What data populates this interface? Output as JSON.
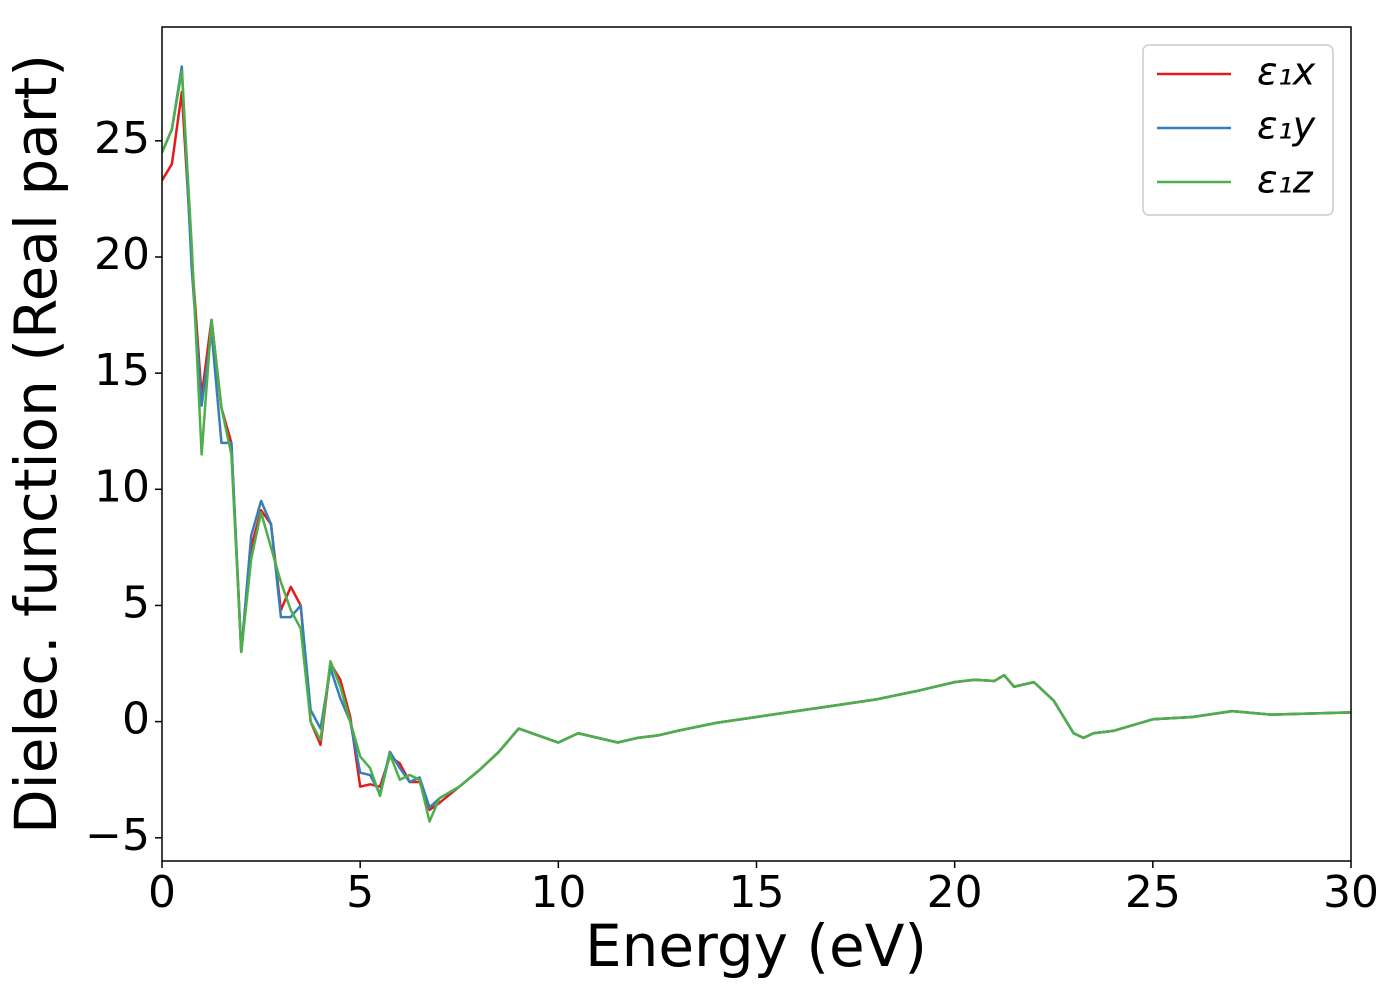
{
  "chart_data": {
    "type": "line",
    "xlabel": "Energy (eV)",
    "ylabel": "Dielec. function (Real part)",
    "x": [
      0,
      0.25,
      0.5,
      0.75,
      1.0,
      1.25,
      1.5,
      1.75,
      2.0,
      2.25,
      2.5,
      2.75,
      3.0,
      3.25,
      3.5,
      3.75,
      4.0,
      4.25,
      4.5,
      4.75,
      5.0,
      5.25,
      5.5,
      5.75,
      6.0,
      6.25,
      6.5,
      6.75,
      7.0,
      7.5,
      8,
      8.5,
      9,
      9.5,
      10,
      10.5,
      11,
      11.5,
      12,
      12.5,
      13,
      14,
      15,
      16,
      17,
      18,
      19,
      20,
      20.5,
      21,
      21.25,
      21.5,
      22,
      22.5,
      23,
      23.25,
      23.5,
      24,
      25,
      25.5,
      26,
      27,
      28,
      29,
      30
    ],
    "series": [
      {
        "name": "ε₁x",
        "color": "#e41a1c",
        "values": [
          23.3,
          24.0,
          27.1,
          20,
          14.0,
          17.3,
          13.5,
          12.0,
          3.0,
          7.5,
          9.1,
          8.5,
          4.8,
          5.8,
          5.0,
          0,
          -1.0,
          2.5,
          1.8,
          0.2,
          -2.8,
          -2.7,
          -2.8,
          -1.5,
          -1.8,
          -2.6,
          -2.6,
          -3.8,
          -3.5,
          -2.8,
          -2.1,
          -1.3,
          -0.3,
          -0.6,
          -0.9,
          -0.5,
          -0.7,
          -0.9,
          -0.7,
          -0.6,
          -0.4,
          -0.05,
          0.2,
          0.45,
          0.7,
          0.95,
          1.3,
          1.7,
          1.8,
          1.75,
          2.0,
          1.5,
          1.7,
          0.9,
          -0.5,
          -0.7,
          -0.5,
          -0.4,
          0.1,
          0.15,
          0.2,
          0.45,
          0.3,
          0.35,
          0.4
        ]
      },
      {
        "name": "ε₁y",
        "color": "#377eb8",
        "values": [
          24.5,
          25.5,
          28.2,
          19.5,
          13.6,
          16.8,
          12.0,
          12.0,
          3.0,
          8.0,
          9.5,
          8.5,
          4.5,
          4.5,
          5.0,
          0.5,
          -0.3,
          2.3,
          1.0,
          0,
          -2.2,
          -2.3,
          -3.1,
          -1.3,
          -2.0,
          -2.6,
          -2.4,
          -3.7,
          -3.3,
          -2.8,
          -2.1,
          -1.3,
          -0.3,
          -0.6,
          -0.9,
          -0.5,
          -0.7,
          -0.9,
          -0.7,
          -0.6,
          -0.4,
          -0.05,
          0.2,
          0.45,
          0.7,
          0.95,
          1.3,
          1.7,
          1.8,
          1.75,
          2.0,
          1.5,
          1.7,
          0.9,
          -0.5,
          -0.7,
          -0.5,
          -0.4,
          0.1,
          0.15,
          0.2,
          0.45,
          0.3,
          0.35,
          0.4
        ]
      },
      {
        "name": "ε₁z",
        "color": "#4daf4a",
        "values": [
          24.5,
          25.5,
          28.0,
          20.5,
          11.5,
          17.3,
          13.5,
          11.5,
          3.0,
          7.0,
          9.0,
          7.5,
          6.0,
          4.8,
          4.0,
          0,
          -0.8,
          2.6,
          1.5,
          0,
          -1.5,
          -2.0,
          -3.2,
          -1.4,
          -2.5,
          -2.3,
          -2.5,
          -4.3,
          -3.3,
          -2.8,
          -2.1,
          -1.3,
          -0.3,
          -0.6,
          -0.9,
          -0.5,
          -0.7,
          -0.9,
          -0.7,
          -0.6,
          -0.4,
          -0.05,
          0.2,
          0.45,
          0.7,
          0.95,
          1.3,
          1.7,
          1.8,
          1.75,
          2.0,
          1.5,
          1.7,
          0.9,
          -0.5,
          -0.7,
          -0.5,
          -0.4,
          0.1,
          0.15,
          0.2,
          0.45,
          0.3,
          0.35,
          0.4
        ]
      }
    ],
    "xlim": [
      0,
      30
    ],
    "xticks": [
      0,
      5,
      10,
      15,
      20,
      25,
      30
    ],
    "ylim": [
      -6,
      29.9
    ],
    "yticks": [
      {
        "value": -5,
        "label": "−5"
      },
      0,
      5,
      10,
      15,
      20,
      25
    ],
    "legend": "upper right",
    "grid": false
  }
}
